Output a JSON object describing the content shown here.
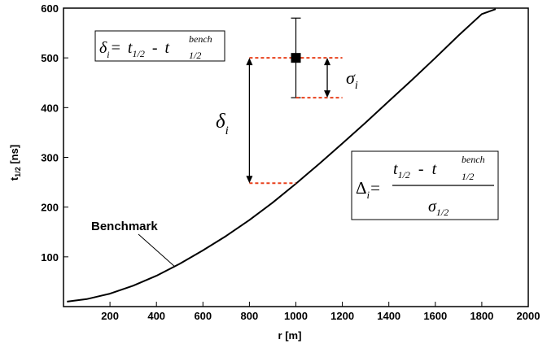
{
  "chart_data": {
    "type": "line",
    "xlabel": "r [m]",
    "ylabel": {
      "main": "t",
      "sub": "1/2",
      "unit": " [ns]"
    },
    "xlim": [
      0,
      2000
    ],
    "ylim": [
      0,
      600
    ],
    "x_ticks": [
      200,
      400,
      600,
      800,
      1000,
      1200,
      1400,
      1600,
      1800,
      2000
    ],
    "y_ticks": [
      100,
      200,
      300,
      400,
      500,
      600
    ],
    "x_tick_labels": [
      "200",
      "400",
      "600",
      "800",
      "1000",
      "1200",
      "1400",
      "1600",
      "1800",
      "2000"
    ],
    "y_tick_labels": [
      "100",
      "200",
      "300",
      "400",
      "500",
      "600"
    ],
    "grid": false,
    "series": [
      {
        "name": "Benchmark",
        "x": [
          15,
          100,
          200,
          300,
          400,
          500,
          600,
          700,
          800,
          900,
          1000,
          1100,
          1200,
          1300,
          1400,
          1500,
          1600,
          1700,
          1800,
          1860
        ],
        "y": [
          10,
          15,
          26,
          42,
          62,
          86,
          113,
          142,
          174,
          209,
          247,
          287,
          328,
          370,
          413,
          456,
          500,
          545,
          588,
          598
        ]
      }
    ],
    "measurement": {
      "x": 1000,
      "y": 500,
      "y_err_low": 420,
      "y_err_high": 580
    },
    "bench_at_measurement": 248,
    "annotations": {
      "benchmark_label": "Benchmark",
      "delta_symbol": "δ",
      "delta_sub": "i",
      "sigma_symbol": "σ",
      "sigma_sub": "i",
      "formula1": {
        "lhs": "δ",
        "lhs_sub": "i",
        "eq": "=",
        "t": "t",
        "t_sub": "1/2",
        "minus": "-",
        "tb": "t",
        "tb_sub": "1/2",
        "tb_sup": "bench"
      },
      "formula2": {
        "lhs": "Δ",
        "lhs_sub": "i",
        "eq": "=",
        "num_t": "t",
        "num_t_sub": "1/2",
        "minus": "-",
        "num_tb": "t",
        "num_tb_sub": "1/2",
        "num_tb_sup": "bench",
        "den": "σ",
        "den_sub": "1/2"
      }
    },
    "colors": {
      "curve": "#000000",
      "dashed": "#e8401c",
      "marker": "#000000"
    }
  }
}
